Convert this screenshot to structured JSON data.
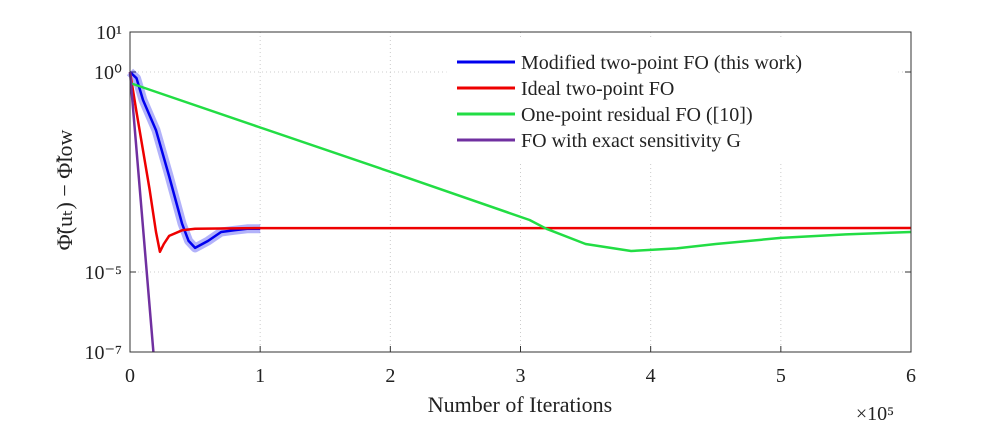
{
  "chart_data": {
    "type": "line",
    "x_label": "Number of Iterations",
    "x_scale_label": "×10⁵",
    "y_label": "Φ̃(uₜ) − Φ̃low",
    "xlim": [
      0,
      6
    ],
    "xticks": [
      0,
      1,
      2,
      3,
      4,
      5,
      6
    ],
    "ylim": [
      1e-07,
      10
    ],
    "y_log": true,
    "yticks": [
      {
        "value": 10,
        "label": "10¹"
      },
      {
        "value": 1,
        "label": "10⁰"
      },
      {
        "value": 1e-05,
        "label": "10⁻⁵"
      },
      {
        "value": 1e-07,
        "label": "10⁻⁷"
      }
    ],
    "grid": true,
    "legend_position": "upper-right",
    "series": [
      {
        "name": "Modified two-point FO (this work)",
        "color": "#0000ee",
        "band": true,
        "x": [
          0,
          0.05,
          0.1,
          0.2,
          0.3,
          0.35,
          0.4,
          0.45,
          0.5,
          0.6,
          0.7,
          0.8,
          0.9,
          1.0
        ],
        "values": [
          1.0,
          0.7,
          0.2,
          0.035,
          0.0025,
          0.00063,
          0.00016,
          6e-05,
          4e-05,
          6e-05,
          0.0001,
          0.00011,
          0.00012,
          0.00012
        ]
      },
      {
        "name": "Ideal two-point FO",
        "color": "#ee0000",
        "x": [
          0,
          0.05,
          0.1,
          0.15,
          0.2,
          0.23,
          0.26,
          0.3,
          0.4,
          0.5,
          1,
          2,
          3,
          4,
          5,
          6
        ],
        "values": [
          1.0,
          0.1,
          0.011,
          0.0012,
          0.0001,
          3.2e-05,
          5e-05,
          8e-05,
          0.00011,
          0.00012,
          0.000125,
          0.000125,
          0.000125,
          0.000125,
          0.000125,
          0.000126
        ]
      },
      {
        "name": "One-point residual FO ([10])",
        "color": "#22dd44",
        "x": [
          0,
          1,
          2,
          3.07,
          3.2,
          3.5,
          3.85,
          4.2,
          4.5,
          5,
          5.5,
          6
        ],
        "values": [
          0.53,
          0.041,
          0.0032,
          0.0002,
          0.00012,
          5e-05,
          3.35e-05,
          3.9e-05,
          5e-05,
          7.1e-05,
          8.7e-05,
          0.0001
        ]
      },
      {
        "name": "FO with exact sensitivity G",
        "color": "#7030a0",
        "x": [
          0,
          0.09,
          0.18
        ],
        "values": [
          1.0,
          0.00032,
          1e-07
        ]
      }
    ]
  }
}
